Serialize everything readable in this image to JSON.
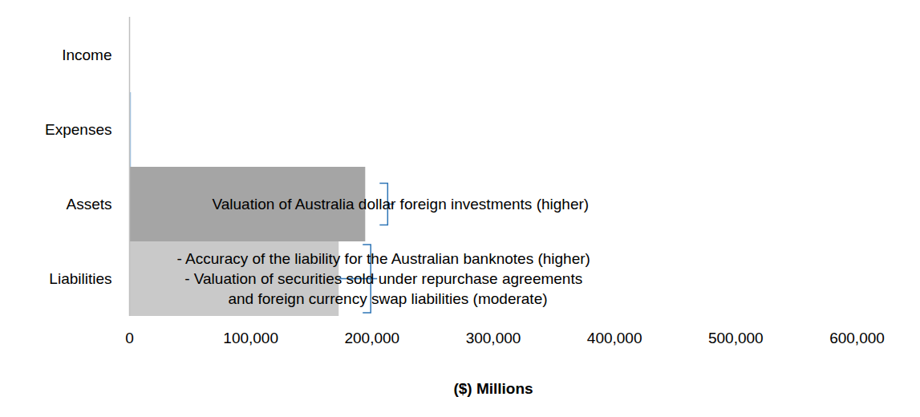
{
  "chart_data": {
    "type": "bar",
    "orientation": "horizontal",
    "categories": [
      "Income",
      "Expenses",
      "Assets",
      "Liabilities"
    ],
    "values": [
      500,
      1500,
      194700,
      172800
    ],
    "colors": [
      "#bfbfbf",
      "#9dc3e6",
      "#a5a5a5",
      "#c9c9c9"
    ],
    "x_label": "($) Millions",
    "xlim": [
      0,
      600000
    ],
    "xticks": [
      0,
      {
        "value": 100000,
        "label": "100,000"
      },
      {
        "value": 200000,
        "label": "200,000"
      },
      {
        "value": 300000,
        "label": "300,000"
      },
      {
        "value": 400000,
        "label": "400,000"
      },
      {
        "value": 500000,
        "label": "500,000"
      },
      {
        "value": 600000,
        "label": "600,000"
      }
    ],
    "grid": false,
    "annotations": [
      {
        "category": "Assets",
        "lines": [
          "Valuation of Australia dollar foreign investments (higher)"
        ]
      },
      {
        "category": "Liabilities",
        "lines": [
          "- Accuracy of the liability for the Australian banknotes (higher)",
          "- Valuation of securities sold under repurchase agreements",
          "  and foreign currency swap liabilities (moderate)"
        ]
      }
    ]
  }
}
